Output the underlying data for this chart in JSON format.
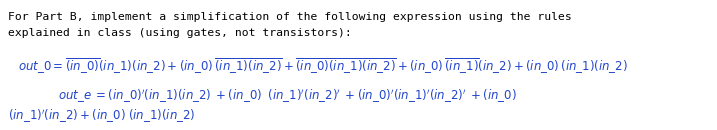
{
  "bg_color": "#ffffff",
  "hc": "#000000",
  "ec": "#2244cc",
  "figsize": [
    7.17,
    1.3
  ],
  "dpi": 100,
  "fs_header": 8.2,
  "fs_expr": 8.5,
  "header_line1": "For Part B, implement a simplification of the following expression using the rules",
  "header_line2": "explained in class (using gates, not transistors):",
  "out0": "$\\mathit{out\\_0} = \\overline{(in\\_0)}(in\\_1)(in\\_2) + (in\\_0)\\,\\overline{(in\\_1)(in\\_2)} + \\overline{(in\\_0)(in\\_1)(in\\_2)} + (in\\_0)\\,\\overline{(in\\_1)}(in\\_2) +(in\\_0)\\,(in\\_1)(in\\_2)$",
  "oute1": "$\\mathit{out\\_e}\\; = (in\\_0)'(in\\_1)(in\\_2)\\; + (in\\_0)\\;\\; (in\\_1)'(in\\_2)'\\; + (in\\_0)'(in\\_1)'(in\\_2)'\\; + (in\\_0)$",
  "oute2": "$(in\\_1)'(in\\_2) +(in\\_0)\\; (in\\_1)(in\\_2)$"
}
